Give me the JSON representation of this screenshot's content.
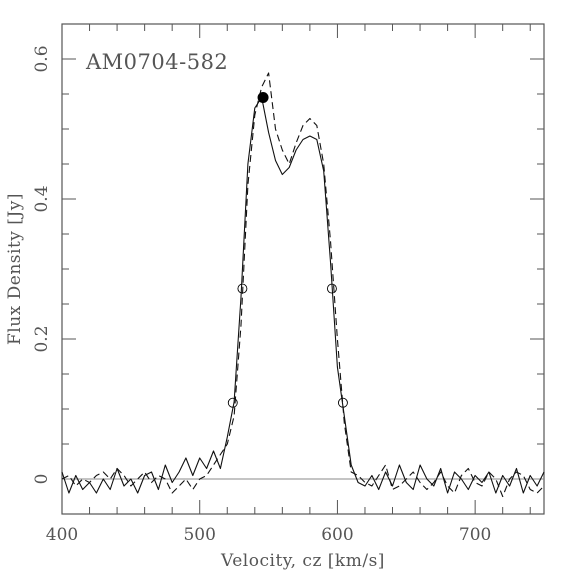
{
  "chart_data": {
    "type": "line",
    "title": "AM0704-582",
    "xlabel": "Velocity, cz [km/s]",
    "ylabel": "Flux Density [Jy]",
    "xlim": [
      400,
      750
    ],
    "ylim": [
      -0.05,
      0.65
    ],
    "x_ticks": [
      400,
      500,
      600,
      700
    ],
    "y_ticks": [
      0,
      0.2,
      0.4,
      0.6
    ],
    "x_tick_labels": [
      "400",
      "500",
      "600",
      "700"
    ],
    "y_tick_labels": [
      "0",
      "0.2",
      "0.4",
      "0.6"
    ],
    "grid": false,
    "zero_line": 0,
    "series": [
      {
        "style": "solid",
        "x": [
          400,
          405,
          410,
          415,
          420,
          425,
          430,
          435,
          440,
          445,
          450,
          455,
          460,
          465,
          470,
          475,
          480,
          485,
          490,
          495,
          500,
          505,
          510,
          515,
          520,
          525,
          530,
          535,
          540,
          545,
          550,
          555,
          560,
          565,
          570,
          575,
          580,
          585,
          590,
          595,
          600,
          605,
          610,
          615,
          620,
          625,
          630,
          635,
          640,
          645,
          650,
          655,
          660,
          665,
          670,
          675,
          680,
          685,
          690,
          695,
          700,
          705,
          710,
          715,
          720,
          725,
          730,
          735,
          740,
          745,
          750
        ],
        "y": [
          0.01,
          -0.02,
          0.005,
          -0.015,
          -0.005,
          -0.02,
          0.0,
          -0.015,
          0.015,
          -0.01,
          0.0,
          -0.02,
          0.005,
          0.01,
          -0.015,
          0.02,
          -0.005,
          0.01,
          0.03,
          0.005,
          0.03,
          0.015,
          0.04,
          0.015,
          0.06,
          0.11,
          0.26,
          0.45,
          0.53,
          0.545,
          0.495,
          0.455,
          0.435,
          0.445,
          0.47,
          0.485,
          0.49,
          0.485,
          0.44,
          0.31,
          0.16,
          0.09,
          0.02,
          -0.005,
          -0.01,
          0.005,
          -0.015,
          0.01,
          -0.01,
          0.02,
          -0.005,
          -0.015,
          0.02,
          0.0,
          -0.01,
          0.015,
          -0.02,
          0.01,
          0.0,
          -0.015,
          0.005,
          -0.005,
          0.01,
          -0.02,
          0.005,
          -0.01,
          0.015,
          -0.02,
          0.005,
          -0.01,
          0.01
        ]
      },
      {
        "style": "dashed",
        "x": [
          400,
          405,
          410,
          415,
          420,
          425,
          430,
          435,
          440,
          445,
          450,
          455,
          460,
          465,
          470,
          475,
          480,
          485,
          490,
          495,
          500,
          505,
          510,
          515,
          520,
          525,
          530,
          535,
          540,
          545,
          550,
          555,
          560,
          565,
          570,
          575,
          580,
          585,
          590,
          595,
          600,
          605,
          610,
          615,
          620,
          625,
          630,
          635,
          640,
          645,
          650,
          655,
          660,
          665,
          670,
          675,
          680,
          685,
          690,
          695,
          700,
          705,
          710,
          715,
          720,
          725,
          730,
          735,
          740,
          745,
          750
        ],
        "y": [
          0.0,
          0.005,
          -0.01,
          0.0,
          -0.005,
          0.005,
          0.01,
          0.0,
          0.015,
          0.005,
          -0.01,
          0.0,
          0.01,
          -0.005,
          0.005,
          0.0,
          -0.02,
          -0.01,
          0.0,
          -0.015,
          0.0,
          0.005,
          0.02,
          0.035,
          0.05,
          0.09,
          0.22,
          0.42,
          0.52,
          0.56,
          0.58,
          0.5,
          0.47,
          0.45,
          0.48,
          0.505,
          0.515,
          0.505,
          0.45,
          0.34,
          0.2,
          0.08,
          0.01,
          0.005,
          -0.005,
          -0.01,
          0.005,
          0.02,
          -0.015,
          -0.01,
          0.0,
          0.01,
          -0.005,
          -0.015,
          -0.005,
          0.01,
          -0.01,
          -0.02,
          0.005,
          0.015,
          -0.005,
          -0.01,
          0.01,
          0.0,
          -0.025,
          0.0,
          0.01,
          0.005,
          -0.015,
          -0.02,
          -0.01
        ]
      }
    ],
    "markers": [
      {
        "type": "peak",
        "fill": "filled",
        "x": 546,
        "y": 0.545
      },
      {
        "type": "width-20pct",
        "fill": "open",
        "x": 524,
        "y": 0.109
      },
      {
        "type": "width-20pct",
        "fill": "open",
        "x": 604,
        "y": 0.109
      },
      {
        "type": "width-50pct",
        "fill": "open",
        "x": 531,
        "y": 0.272
      },
      {
        "type": "width-50pct",
        "fill": "open",
        "x": 596,
        "y": 0.272
      }
    ],
    "colors": {
      "line": "#111111",
      "axes": "#555555",
      "text": "#555555"
    }
  }
}
